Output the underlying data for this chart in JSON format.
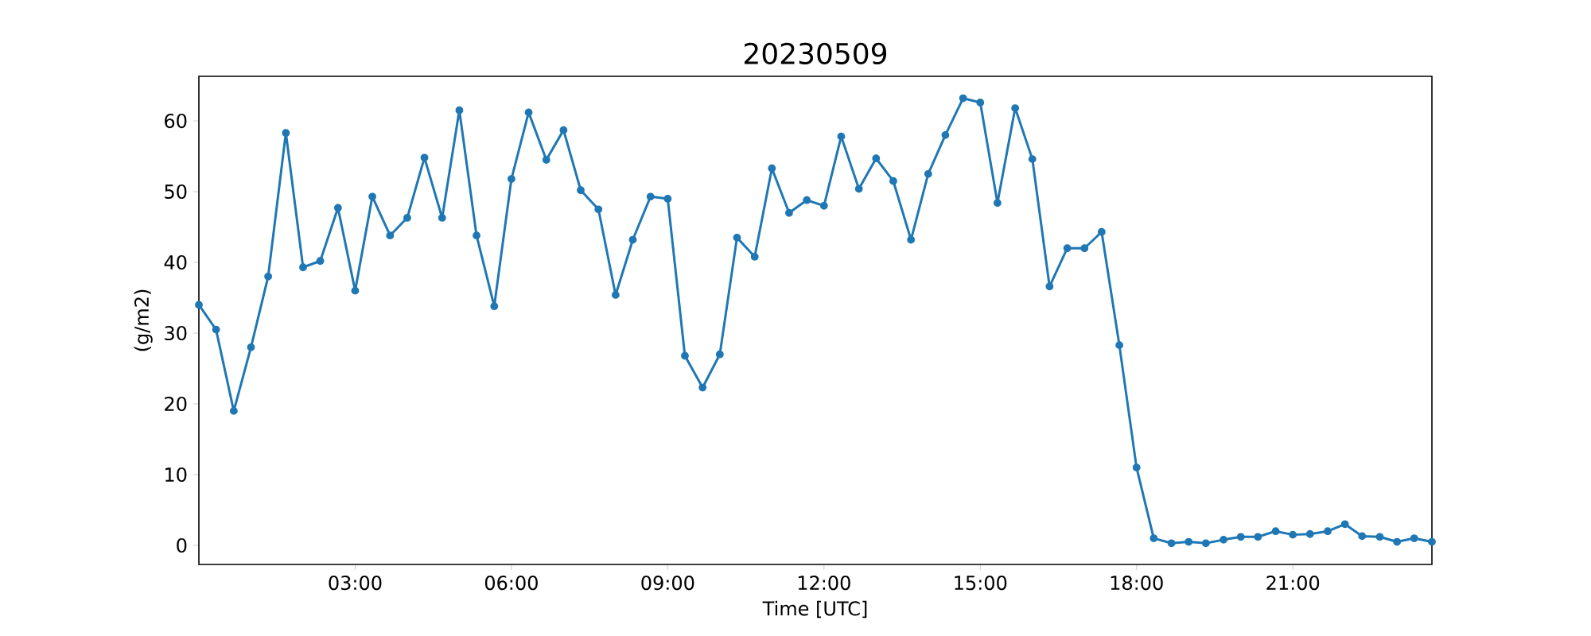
{
  "chart_data": {
    "type": "line",
    "title": "20230509",
    "xlabel": "Time [UTC]",
    "ylabel": "(g/m2)",
    "x": [
      0,
      0.33,
      0.67,
      1,
      1.33,
      1.67,
      2,
      2.33,
      2.67,
      3,
      3.33,
      3.67,
      4,
      4.33,
      4.67,
      5,
      5.33,
      5.67,
      6,
      6.33,
      6.67,
      7,
      7.33,
      7.67,
      8,
      8.33,
      8.67,
      9,
      9.33,
      9.67,
      10,
      10.33,
      10.67,
      11,
      11.33,
      11.67,
      12,
      12.33,
      12.67,
      13,
      13.33,
      13.67,
      14,
      14.33,
      14.67,
      15,
      15.33,
      15.67,
      16,
      16.33,
      16.67,
      17,
      17.33,
      17.67,
      18,
      18.33,
      18.67,
      19,
      19.33,
      19.67,
      20,
      20.33,
      20.67,
      21,
      21.33,
      21.67,
      22,
      22.33,
      22.67,
      23,
      23.33,
      23.67
    ],
    "series": [
      {
        "color": "#1f77b4",
        "values": [
          34,
          30.5,
          19,
          28,
          38,
          58.3,
          39.3,
          40.2,
          47.7,
          36,
          49.3,
          43.8,
          46.3,
          54.8,
          46.3,
          61.5,
          43.8,
          33.8,
          51.8,
          61.2,
          54.5,
          58.7,
          50.2,
          47.5,
          35.4,
          43.2,
          49.3,
          49,
          26.8,
          22.3,
          27,
          43.5,
          40.8,
          53.3,
          47,
          48.8,
          48,
          57.8,
          50.4,
          54.7,
          51.5,
          43.2,
          52.5,
          58,
          63.2,
          62.6,
          48.4,
          61.8,
          54.6,
          36.6,
          42,
          42,
          44.3,
          28.3,
          11,
          1.0,
          0.3,
          0.5,
          0.3,
          0.8,
          1.2,
          1.2,
          2.0,
          1.5,
          1.6,
          2.0,
          3.0,
          1.3,
          1.2,
          0.5,
          1.0,
          0.5
        ]
      }
    ],
    "xlim": [
      0,
      23.67
    ],
    "ylim": [
      -2.7,
      66.3
    ],
    "xticks": [
      {
        "value": 3,
        "label": "03:00"
      },
      {
        "value": 6,
        "label": "06:00"
      },
      {
        "value": 9,
        "label": "09:00"
      },
      {
        "value": 12,
        "label": "12:00"
      },
      {
        "value": 15,
        "label": "15:00"
      },
      {
        "value": 18,
        "label": "18:00"
      },
      {
        "value": 21,
        "label": "21:00"
      }
    ],
    "yticks": [
      0,
      10,
      20,
      30,
      40,
      50,
      60
    ],
    "marker": "circle"
  }
}
